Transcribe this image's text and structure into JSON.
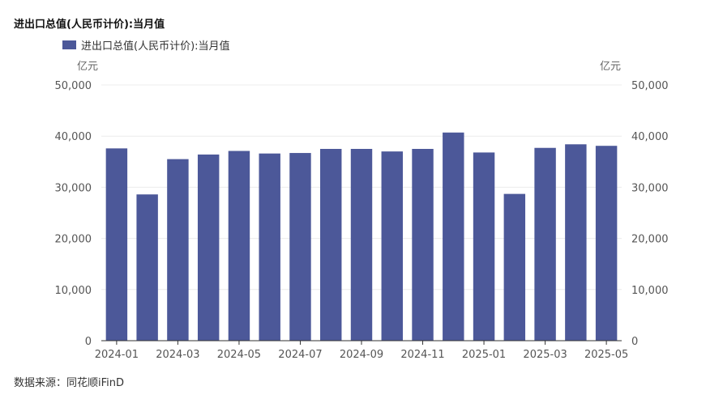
{
  "title": "进出口总值(人民币计价):当月值",
  "legend": {
    "label": "进出口总值(人民币计价):当月值",
    "color": "#4c5899"
  },
  "units": {
    "left": "亿元",
    "right": "亿元"
  },
  "source": "数据来源：同花顺iFinD",
  "chart_data": {
    "type": "bar",
    "title": "进出口总值(人民币计价):当月值",
    "categories": [
      "2024-01",
      "2024-02",
      "2024-03",
      "2024-04",
      "2024-05",
      "2024-06",
      "2024-07",
      "2024-08",
      "2024-09",
      "2024-10",
      "2024-11",
      "2024-12",
      "2025-01",
      "2025-02",
      "2025-03",
      "2025-04",
      "2025-05"
    ],
    "series": [
      {
        "name": "进出口总值(人民币计价):当月值",
        "values": [
          37600,
          28600,
          35500,
          36400,
          37100,
          36600,
          36700,
          37500,
          37500,
          37000,
          37500,
          40700,
          36800,
          28700,
          37700,
          38400,
          38100
        ]
      }
    ],
    "x_tick_labels": [
      "2024-01",
      "2024-03",
      "2024-05",
      "2024-07",
      "2024-09",
      "2024-11",
      "2025-01",
      "2025-03",
      "2025-05"
    ],
    "ylim": [
      0,
      50000
    ],
    "y_ticks": [
      "0",
      "10,000",
      "20,000",
      "30,000",
      "40,000",
      "50,000"
    ],
    "ylabel_left": "亿元",
    "ylabel_right": "亿元",
    "grid": true,
    "legend_position": "top-left"
  }
}
